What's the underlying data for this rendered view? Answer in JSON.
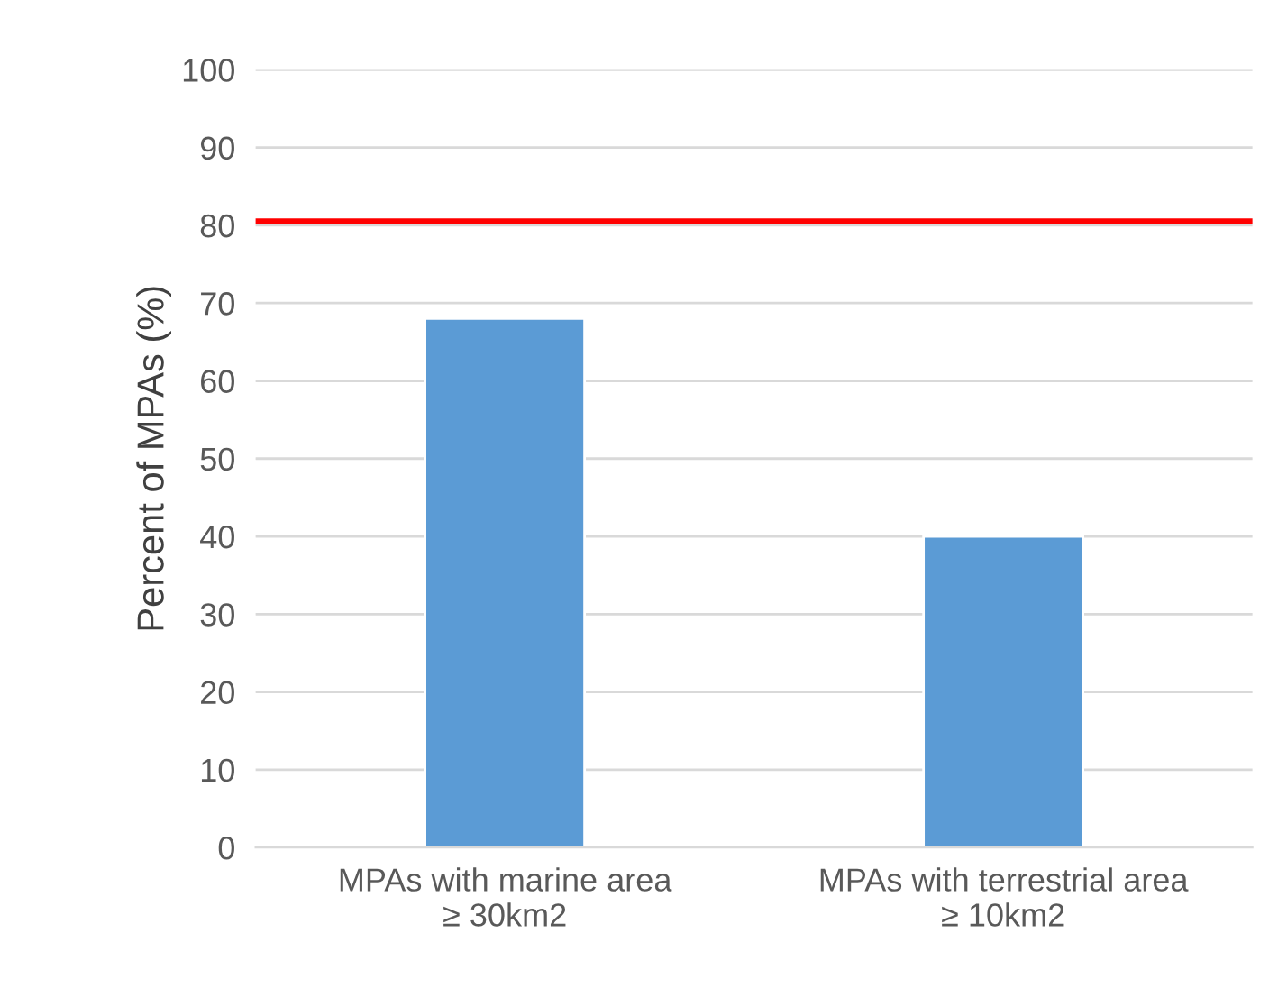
{
  "chart_data": {
    "type": "bar",
    "ylabel": "Percent of MPAs (%)",
    "categories": [
      "MPAs with marine area\n≥ 30km2",
      "MPAs with terrestrial area\n≥ 10km2"
    ],
    "values": [
      68,
      40
    ],
    "color": "#5b9bd5",
    "ylim": [
      0,
      100
    ],
    "yticks": [
      0,
      10,
      20,
      30,
      40,
      50,
      60,
      70,
      80,
      90,
      100
    ],
    "grid": "y",
    "ref_lines": [
      {
        "axis": "y",
        "value": 80.5,
        "color": "#ff0000",
        "line_style": "solid"
      }
    ]
  }
}
